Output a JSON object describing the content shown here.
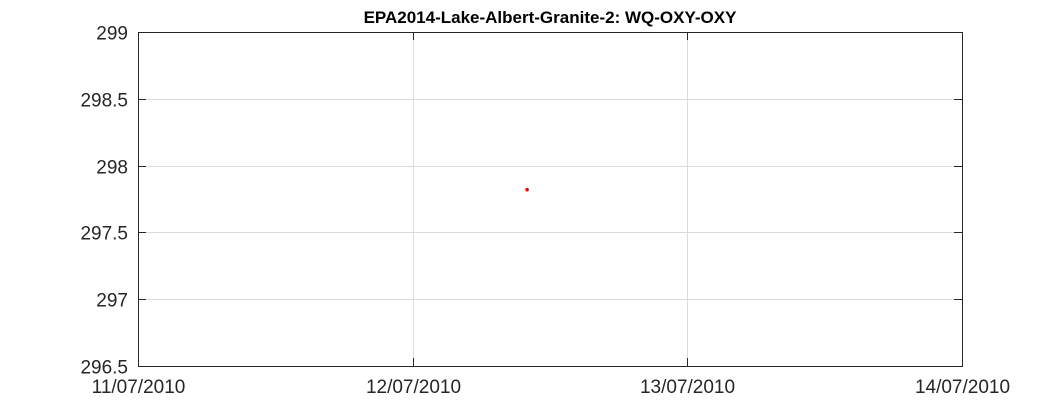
{
  "chart_data": {
    "type": "scatter",
    "title": "EPA2014-Lake-Albert-Granite-2: WQ-OXY-OXY",
    "xlabel": "",
    "ylabel": "",
    "x_ticks": [
      "11/07/2010",
      "12/07/2010",
      "13/07/2010",
      "14/07/2010"
    ],
    "y_ticks": [
      "299",
      "298.5",
      "298",
      "297.5",
      "297",
      "296.5"
    ],
    "xlim": [
      "11/07/2010",
      "14/07/2010"
    ],
    "ylim": [
      296.5,
      299
    ],
    "grid": true,
    "series": [
      {
        "color": "#ff0000",
        "marker": "dot",
        "points": [
          {
            "x": "12/07/2010 10:00",
            "y": 297.82
          }
        ]
      }
    ]
  }
}
